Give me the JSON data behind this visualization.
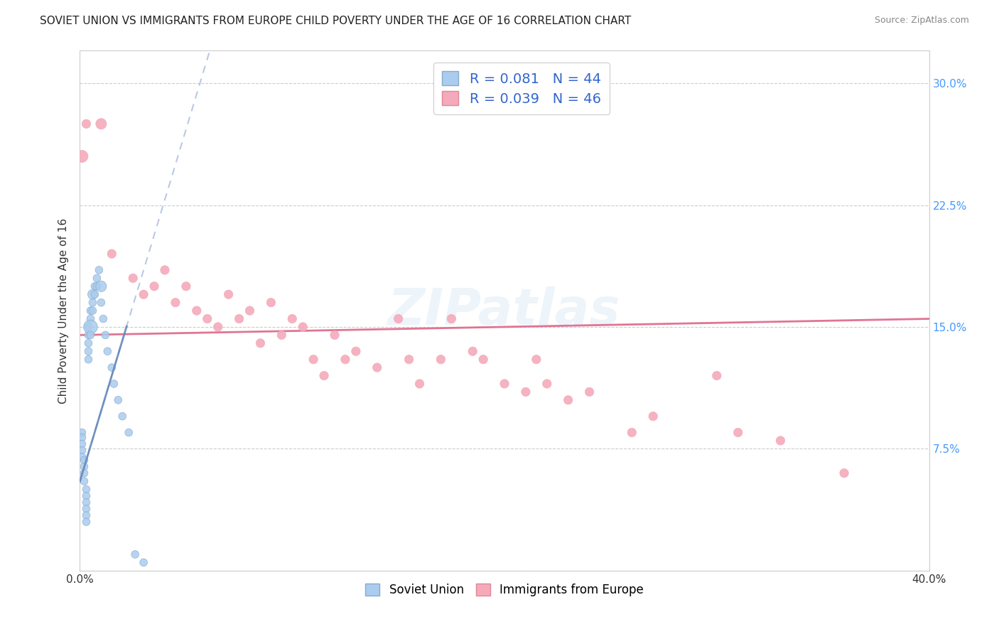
{
  "title": "SOVIET UNION VS IMMIGRANTS FROM EUROPE CHILD POVERTY UNDER THE AGE OF 16 CORRELATION CHART",
  "source": "Source: ZipAtlas.com",
  "ylabel": "Child Poverty Under the Age of 16",
  "xlim": [
    0.0,
    0.4
  ],
  "ylim": [
    0.0,
    0.32
  ],
  "grid_color": "#cccccc",
  "background_color": "#ffffff",
  "watermark": "ZIPatlas",
  "legend_r1": "R = 0.081",
  "legend_n1": "N = 44",
  "legend_r2": "R = 0.039",
  "legend_n2": "N = 46",
  "blue_color": "#aaccee",
  "blue_edge_color": "#88aacc",
  "pink_color": "#f4aabb",
  "pink_edge_color": "#e08898",
  "blue_trend_color": "#6688bb",
  "blue_trend_dash_color": "#aabbcc",
  "pink_trend_color": "#dd6688",
  "soviet_x": [
    0.001,
    0.001,
    0.001,
    0.001,
    0.001,
    0.002,
    0.002,
    0.002,
    0.002,
    0.003,
    0.003,
    0.003,
    0.003,
    0.003,
    0.003,
    0.004,
    0.004,
    0.004,
    0.004,
    0.004,
    0.005,
    0.005,
    0.005,
    0.005,
    0.006,
    0.006,
    0.006,
    0.007,
    0.007,
    0.008,
    0.008,
    0.009,
    0.01,
    0.01,
    0.011,
    0.012,
    0.013,
    0.015,
    0.016,
    0.018,
    0.02,
    0.023,
    0.026,
    0.03
  ],
  "soviet_y": [
    0.085,
    0.082,
    0.078,
    0.074,
    0.07,
    0.068,
    0.064,
    0.06,
    0.055,
    0.05,
    0.046,
    0.042,
    0.038,
    0.034,
    0.03,
    0.15,
    0.145,
    0.14,
    0.135,
    0.13,
    0.16,
    0.155,
    0.15,
    0.145,
    0.17,
    0.165,
    0.16,
    0.175,
    0.17,
    0.18,
    0.175,
    0.185,
    0.175,
    0.165,
    0.155,
    0.145,
    0.135,
    0.125,
    0.115,
    0.105,
    0.095,
    0.085,
    0.01,
    0.005
  ],
  "soviet_sizes": [
    60,
    60,
    60,
    60,
    60,
    60,
    60,
    60,
    60,
    60,
    60,
    60,
    60,
    60,
    60,
    60,
    60,
    60,
    60,
    60,
    60,
    60,
    200,
    60,
    100,
    60,
    60,
    60,
    60,
    60,
    60,
    60,
    120,
    60,
    60,
    60,
    60,
    60,
    60,
    60,
    60,
    60,
    60,
    60
  ],
  "europe_x": [
    0.001,
    0.003,
    0.01,
    0.015,
    0.025,
    0.03,
    0.035,
    0.04,
    0.045,
    0.05,
    0.055,
    0.06,
    0.065,
    0.07,
    0.075,
    0.08,
    0.085,
    0.09,
    0.095,
    0.1,
    0.105,
    0.11,
    0.115,
    0.12,
    0.125,
    0.13,
    0.14,
    0.15,
    0.155,
    0.16,
    0.17,
    0.175,
    0.185,
    0.19,
    0.2,
    0.21,
    0.215,
    0.22,
    0.23,
    0.24,
    0.26,
    0.27,
    0.3,
    0.31,
    0.33,
    0.36
  ],
  "europe_y": [
    0.255,
    0.275,
    0.275,
    0.195,
    0.18,
    0.17,
    0.175,
    0.185,
    0.165,
    0.175,
    0.16,
    0.155,
    0.15,
    0.17,
    0.155,
    0.16,
    0.14,
    0.165,
    0.145,
    0.155,
    0.15,
    0.13,
    0.12,
    0.145,
    0.13,
    0.135,
    0.125,
    0.155,
    0.13,
    0.115,
    0.13,
    0.155,
    0.135,
    0.13,
    0.115,
    0.11,
    0.13,
    0.115,
    0.105,
    0.11,
    0.085,
    0.095,
    0.12,
    0.085,
    0.08,
    0.06
  ],
  "europe_sizes": [
    150,
    80,
    120,
    80,
    80,
    80,
    80,
    80,
    80,
    80,
    80,
    80,
    80,
    80,
    80,
    80,
    80,
    80,
    80,
    80,
    80,
    80,
    80,
    80,
    80,
    80,
    80,
    80,
    80,
    80,
    80,
    80,
    80,
    80,
    80,
    80,
    80,
    80,
    80,
    80,
    80,
    80,
    80,
    80,
    80,
    80
  ],
  "soviet_trend_x": [
    0.0,
    0.03
  ],
  "soviet_trend_y_start": 0.055,
  "soviet_trend_y_end": 0.185,
  "europe_trend_y_start": 0.145,
  "europe_trend_y_end": 0.155
}
